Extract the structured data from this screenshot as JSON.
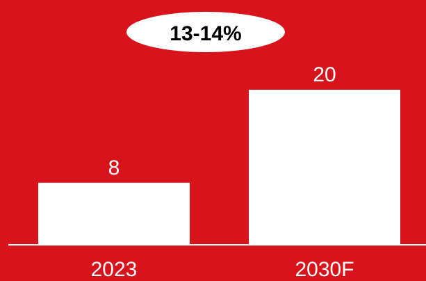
{
  "chart_data": {
    "type": "bar",
    "categories": [
      "2023",
      "2030F"
    ],
    "values": [
      8,
      20
    ],
    "data_labels": [
      "8",
      "20"
    ],
    "annotation": "13-14%",
    "title": "",
    "xlabel": "",
    "ylabel": "",
    "ylim": [
      0,
      20
    ],
    "grid": false,
    "legend": "none"
  },
  "colors": {
    "background": "#d7131b",
    "bar": "#ffffff",
    "text": "#ffffff",
    "annotation_fill": "#ffffff",
    "annotation_text": "#000000"
  }
}
